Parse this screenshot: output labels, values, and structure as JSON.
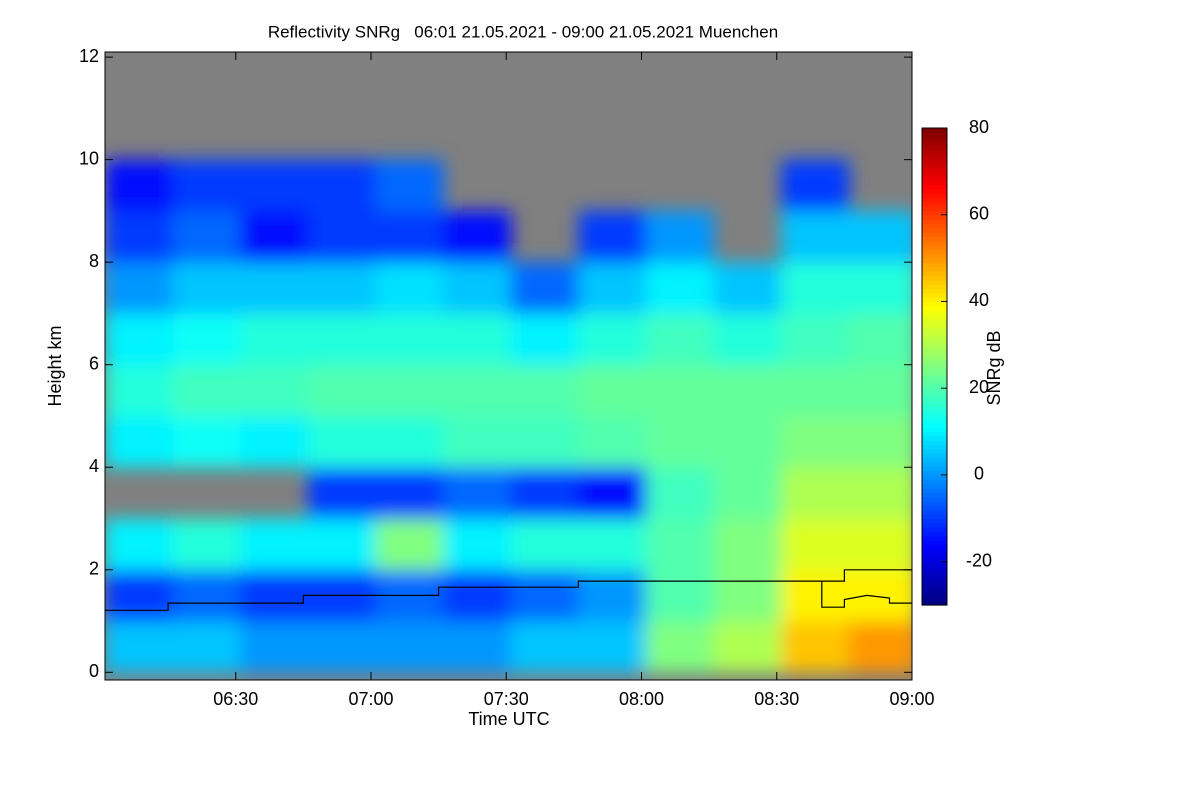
{
  "chart_data": {
    "type": "heatmap",
    "title": "Reflectivity SNRg   06:01 21.05.2021 - 09:00 21.05.2021 Muenchen",
    "x_label": "Time UTC",
    "y_label": "Height km",
    "colorbar_label": "SNRg dB",
    "xlim": [
      361,
      540
    ],
    "ylim": [
      -0.15,
      12.1
    ],
    "xticks": [
      {
        "value": 390,
        "label": "06:30"
      },
      {
        "value": 420,
        "label": "07:00"
      },
      {
        "value": 450,
        "label": "07:30"
      },
      {
        "value": 480,
        "label": "08:00"
      },
      {
        "value": 510,
        "label": "08:30"
      },
      {
        "value": 540,
        "label": "09:00"
      }
    ],
    "yticks": [
      0,
      2,
      4,
      6,
      8,
      10,
      12
    ],
    "clim": [
      -30,
      80
    ],
    "cticks": [
      -20,
      0,
      20,
      40,
      60,
      80
    ],
    "xbins": [
      361,
      376,
      391,
      406,
      421,
      436,
      451,
      466,
      481,
      496,
      511,
      526,
      541
    ],
    "ybins": [
      0,
      1,
      2,
      3,
      4,
      5,
      6,
      7,
      8,
      9,
      10,
      11,
      12
    ],
    "z": [
      [
        5,
        -10,
        10,
        null,
        10,
        15,
        10,
        0,
        -10,
        -15,
        null,
        null
      ],
      [
        5,
        -5,
        15,
        null,
        12,
        18,
        12,
        5,
        -5,
        -10,
        null,
        null
      ],
      [
        0,
        -10,
        10,
        null,
        10,
        18,
        15,
        5,
        -15,
        -10,
        null,
        null
      ],
      [
        0,
        -10,
        10,
        -10,
        15,
        20,
        15,
        5,
        -10,
        -10,
        null,
        null
      ],
      [
        0,
        -5,
        25,
        -10,
        15,
        20,
        15,
        8,
        -10,
        -5,
        null,
        null
      ],
      [
        0,
        -10,
        10,
        -5,
        18,
        20,
        15,
        5,
        -15,
        null,
        null,
        null
      ],
      [
        5,
        -5,
        15,
        -10,
        18,
        20,
        10,
        -5,
        null,
        null,
        null,
        null
      ],
      [
        5,
        0,
        15,
        -15,
        20,
        22,
        15,
        5,
        -10,
        null,
        null,
        null
      ],
      [
        25,
        20,
        20,
        18,
        22,
        22,
        18,
        10,
        0,
        null,
        null,
        null
      ],
      [
        30,
        25,
        25,
        22,
        22,
        22,
        15,
        5,
        null,
        null,
        null,
        null
      ],
      [
        45,
        40,
        35,
        30,
        25,
        22,
        18,
        15,
        5,
        -10,
        null,
        null
      ],
      [
        50,
        40,
        35,
        30,
        25,
        22,
        20,
        15,
        5,
        null,
        null,
        null
      ]
    ],
    "missing_color": "#808080",
    "series": [
      {
        "color": "#000000",
        "x": [
          361,
          375,
          375,
          405,
          405,
          435,
          435,
          466,
          466,
          525,
          525,
          540
        ],
        "values": [
          1.21,
          1.21,
          1.35,
          1.35,
          1.5,
          1.5,
          1.66,
          1.66,
          1.78,
          1.78,
          2.0,
          2.0
        ]
      },
      {
        "color": "#000000",
        "x": [
          520,
          520,
          525,
          525,
          530,
          535,
          535,
          540
        ],
        "values": [
          1.78,
          1.27,
          1.27,
          1.42,
          1.5,
          1.45,
          1.35,
          1.35
        ]
      }
    ]
  }
}
